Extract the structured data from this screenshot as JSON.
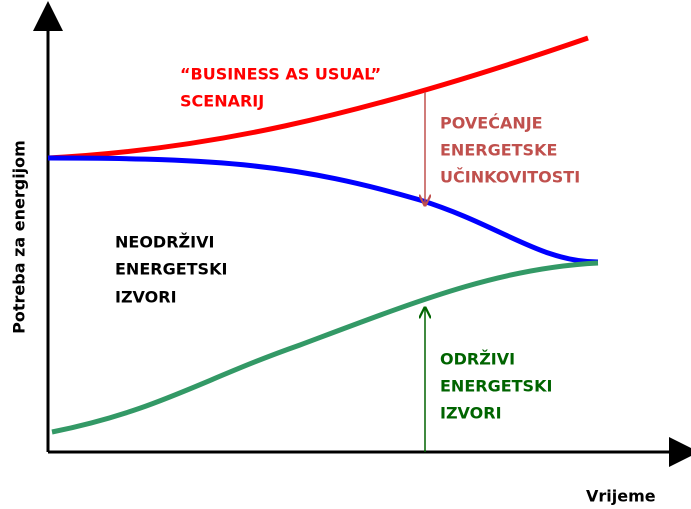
{
  "axes": {
    "y_label": "Potreba za energijom",
    "x_label": "Vrijeme"
  },
  "business_as_usual": {
    "lines": [
      "“BUSINESS AS USUAL”",
      "SCENARIJ"
    ]
  },
  "efficiency": {
    "lines": [
      "POVEĆANJE",
      "ENERGETSKE",
      "UČINKOVITOSTI"
    ]
  },
  "unsustainable": {
    "lines": [
      "NEODRŽIVI",
      "ENERGETSKI",
      "IZVORI"
    ]
  },
  "sustainable": {
    "lines": [
      "ODRŽIVI",
      "ENERGETSKI",
      "IZVORI"
    ]
  }
}
